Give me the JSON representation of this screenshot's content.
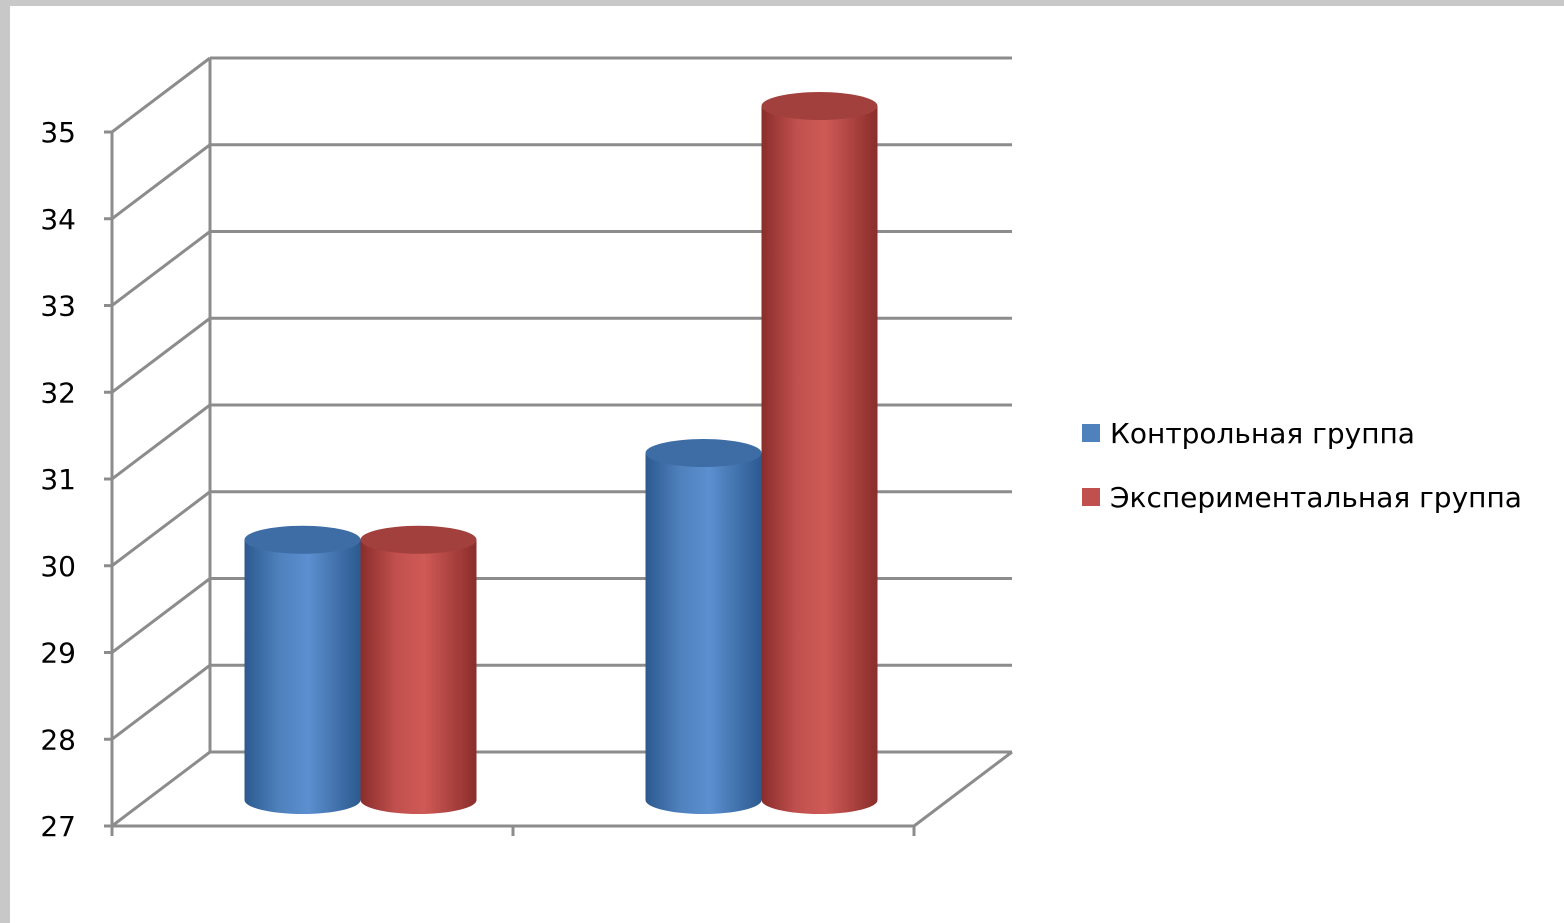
{
  "chart_data": {
    "type": "bar",
    "style": "3d-cylinder",
    "categories": [
      "",
      ""
    ],
    "series": [
      {
        "name": "Контрольная группа",
        "color": "#4f81bd",
        "values": [
          30.0,
          31.0
        ]
      },
      {
        "name": "Экспериментальная группа",
        "color": "#c0504d",
        "values": [
          30.0,
          35.0
        ]
      }
    ],
    "ylim": [
      27,
      35
    ],
    "yticks": [
      "27",
      "28",
      "29",
      "30",
      "31",
      "32",
      "33",
      "34",
      "35"
    ],
    "grid": true,
    "legend": "right",
    "title": "",
    "xlabel": "",
    "ylabel": ""
  }
}
